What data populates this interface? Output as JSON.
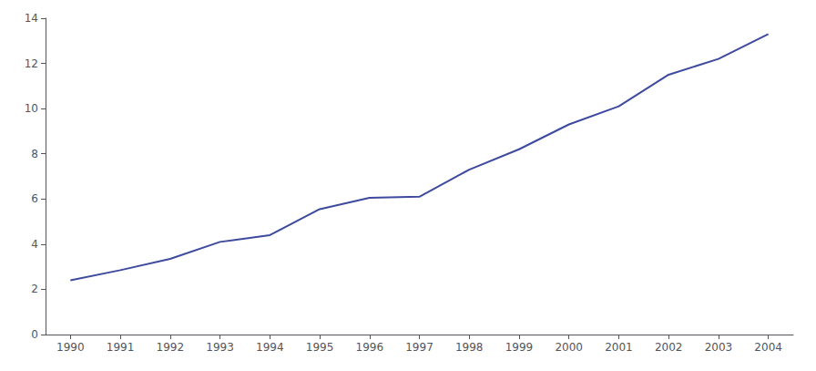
{
  "chart_data": {
    "type": "line",
    "x": [
      1990,
      1991,
      1992,
      1993,
      1994,
      1995,
      1996,
      1997,
      1998,
      1999,
      2000,
      2001,
      2002,
      2003,
      2004
    ],
    "values": [
      2.4,
      2.85,
      3.35,
      4.1,
      4.4,
      5.55,
      6.05,
      6.1,
      7.3,
      8.2,
      9.3,
      10.1,
      11.5,
      12.2,
      13.3
    ],
    "color": "#3d4a9e",
    "xlim": [
      1989.5,
      2004.5
    ],
    "xticks": [
      1990,
      1991,
      1992,
      1993,
      1994,
      1995,
      1996,
      1997,
      1998,
      1999,
      2000,
      2001,
      2002,
      2003,
      2004
    ],
    "ylim": [
      0,
      14
    ],
    "yticks": [
      0,
      2,
      4,
      6,
      8,
      10,
      12,
      14
    ],
    "grid": false
  }
}
